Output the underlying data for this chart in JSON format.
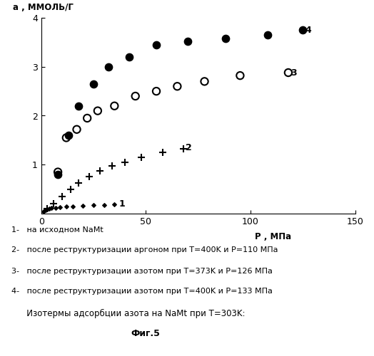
{
  "ylabel": "а , ММОЛЬ/Г",
  "xlabel": "Р , МПа",
  "xlim": [
    0,
    150
  ],
  "ylim": [
    0,
    4
  ],
  "xticks": [
    0,
    50,
    100,
    150
  ],
  "yticks": [
    1,
    2,
    3,
    4
  ],
  "series1_label": "1",
  "series2_label": "2",
  "series3_label": "3",
  "series4_label": "4",
  "series1_x": [
    1,
    2,
    3,
    4,
    5,
    7,
    9,
    12,
    15,
    20,
    25,
    30,
    35
  ],
  "series1_y": [
    0.05,
    0.07,
    0.09,
    0.1,
    0.11,
    0.12,
    0.13,
    0.14,
    0.15,
    0.16,
    0.17,
    0.18,
    0.19
  ],
  "series2_x": [
    3,
    6,
    10,
    14,
    18,
    23,
    28,
    34,
    40,
    48,
    58,
    68
  ],
  "series2_y": [
    0.1,
    0.2,
    0.35,
    0.5,
    0.62,
    0.75,
    0.87,
    0.97,
    1.05,
    1.15,
    1.25,
    1.32
  ],
  "series3_x": [
    8,
    12,
    17,
    22,
    27,
    35,
    45,
    55,
    65,
    78,
    95,
    118
  ],
  "series3_y": [
    0.85,
    1.55,
    1.72,
    1.95,
    2.1,
    2.2,
    2.4,
    2.5,
    2.6,
    2.7,
    2.82,
    2.88
  ],
  "series4_x": [
    8,
    13,
    18,
    25,
    32,
    42,
    55,
    70,
    88,
    108,
    125
  ],
  "series4_y": [
    0.8,
    1.6,
    2.2,
    2.65,
    3.0,
    3.2,
    3.45,
    3.52,
    3.58,
    3.65,
    3.75
  ],
  "legend_texts": [
    "1-   на исходном NaMt",
    "2-   после реструктуризации аргоном при T=400K и P=110 МПа",
    "3-   после реструктуризации азотом при T=373K и P=126 МПа",
    "4-   после реструктуризации азотом при T=400K и P=133 МПа"
  ],
  "caption_line1": "   Изотермы адсорбции азота на NaMt при T=303K:",
  "caption_line2": "Фиг.5",
  "background_color": "#ffffff"
}
